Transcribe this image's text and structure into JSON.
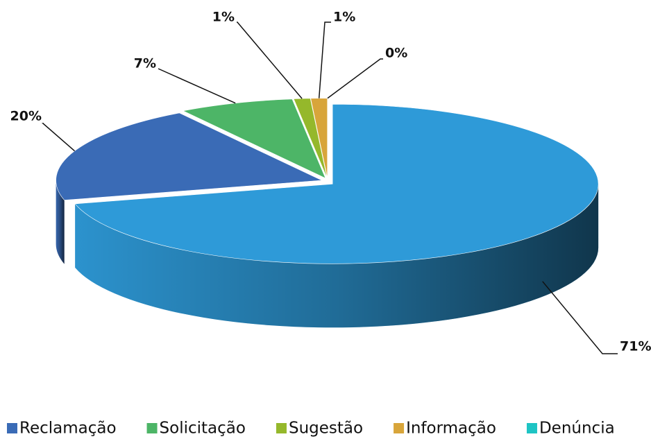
{
  "chart_data": {
    "type": "pie3d",
    "categories": [
      null,
      "Reclamação",
      "Solicitação",
      "Sugestão",
      "Informação",
      "Denúncia"
    ],
    "values": [
      71,
      20,
      7,
      1,
      1,
      0
    ],
    "value_labels": [
      "71%",
      "20%",
      "7%",
      "1%",
      "1%",
      "0%"
    ],
    "colors": [
      "#2e9ad8",
      "#3a6bb6",
      "#4db567",
      "#95b82b",
      "#d8a53a",
      "#1ec4c4"
    ],
    "legend": "bottom"
  }
}
